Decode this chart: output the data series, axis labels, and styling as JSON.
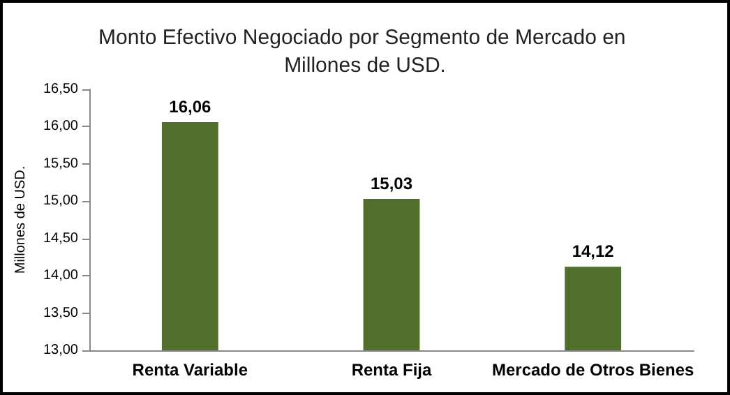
{
  "chart_data": {
    "type": "bar",
    "title": "Monto Efectivo Negociado por Segmento de Mercado en Millones de USD.",
    "ylabel": "Millones de USD.",
    "categories": [
      "Renta Variable",
      "Renta Fija",
      "Mercado de Otros Bienes"
    ],
    "values": [
      16.06,
      15.03,
      14.12
    ],
    "color": "#4f6f2b",
    "value_labels": [
      "16,06",
      "15,03",
      "14,12"
    ],
    "ylim": [
      13,
      16.5
    ],
    "yticks": [
      {
        "value": 13,
        "label": "13,00"
      },
      {
        "value": 13.5,
        "label": "13,50"
      },
      {
        "value": 14,
        "label": "14,00"
      },
      {
        "value": 14.5,
        "label": "14,50"
      },
      {
        "value": 15,
        "label": "15,00"
      },
      {
        "value": 15.5,
        "label": "15,50"
      },
      {
        "value": 16,
        "label": "16,00"
      },
      {
        "value": 16.5,
        "label": "16,50"
      }
    ],
    "grid": false
  }
}
